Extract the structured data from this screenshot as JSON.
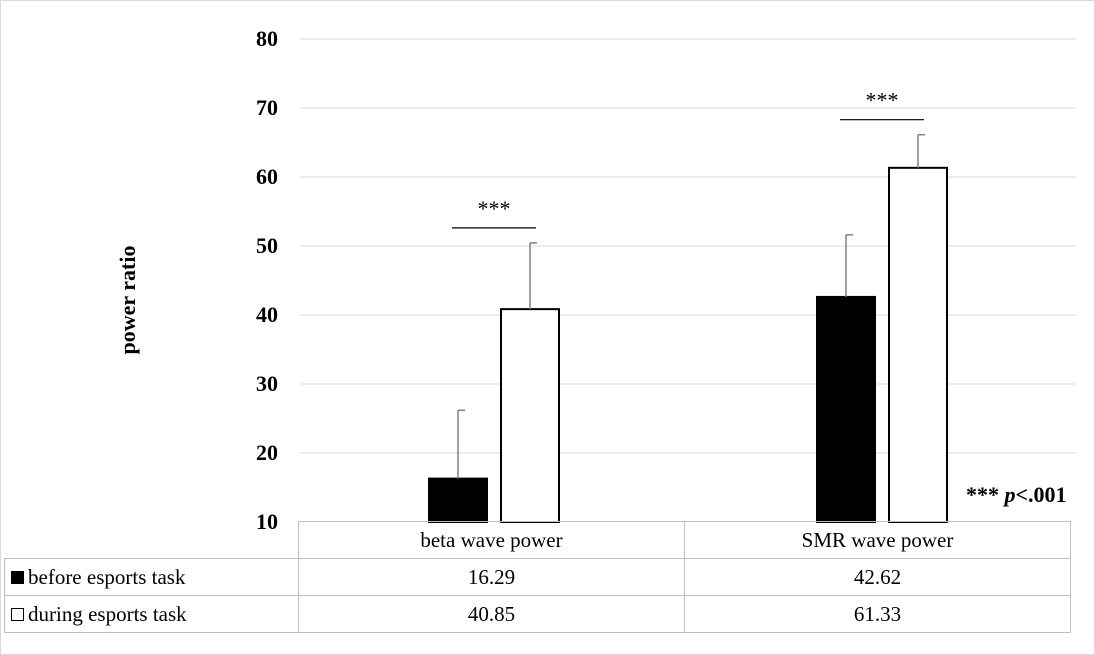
{
  "chart_data": {
    "type": "bar",
    "categories": [
      "beta wave power",
      "SMR wave power"
    ],
    "series": [
      {
        "name": "before esports task",
        "values": [
          16.29,
          42.62
        ],
        "error": [
          9.9,
          9.0
        ],
        "color": "#000000"
      },
      {
        "name": "during esports task",
        "values": [
          40.85,
          61.33
        ],
        "error": [
          9.6,
          4.8
        ],
        "color": "#ffffff"
      }
    ],
    "ylabel": "power ratio",
    "xlabel": "",
    "ylim": [
      10,
      80
    ],
    "yticks": [
      "10",
      "20",
      "30",
      "40",
      "50",
      "60",
      "70",
      "80"
    ],
    "grid": true,
    "legend": "data table below chart",
    "significance": [
      {
        "category": "beta wave power",
        "label": "***"
      },
      {
        "category": "SMR wave power",
        "label": "***"
      }
    ],
    "annotation": {
      "stars": "***",
      "p_symbol": "p",
      "p_value": "<.001"
    },
    "table": {
      "values": [
        [
          "16.29",
          "42.62"
        ],
        [
          "40.85",
          "61.33"
        ]
      ]
    }
  }
}
